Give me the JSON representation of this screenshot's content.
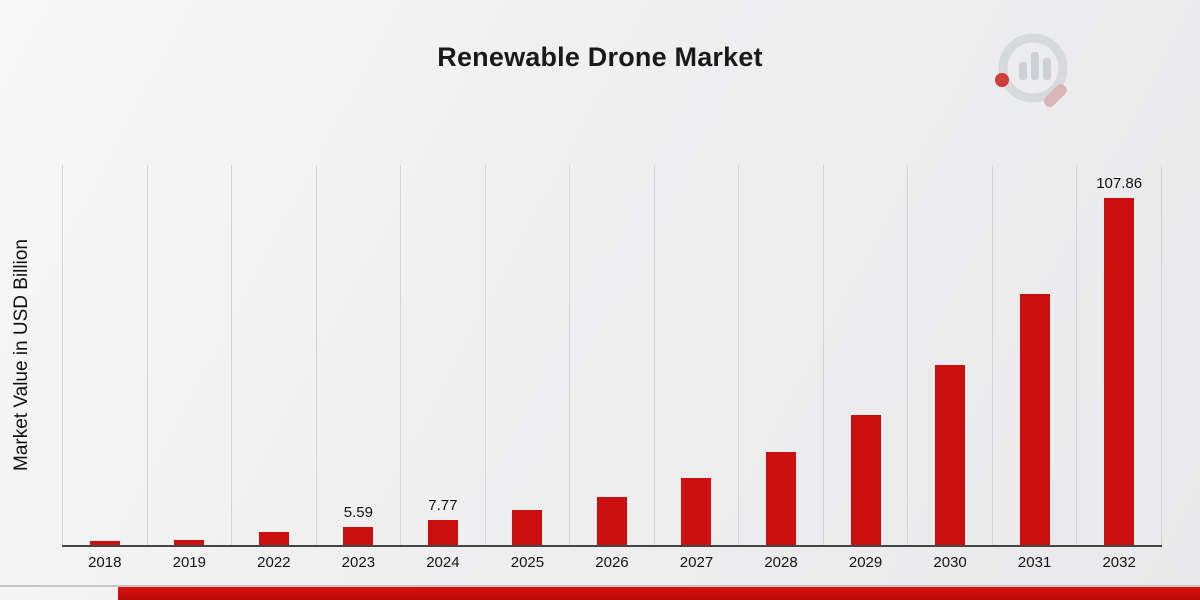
{
  "chart_data": {
    "type": "bar",
    "title": "Renewable Drone Market",
    "xlabel": "",
    "ylabel": "Market Value in USD Billion",
    "ylim": [
      0,
      118
    ],
    "grid": "vertical-gridlines-only",
    "legend": "none",
    "bar_color": "#cb0e0e",
    "background": "light-gray-diagonal-gradient",
    "categories": [
      "2018",
      "2019",
      "2022",
      "2023",
      "2024",
      "2025",
      "2026",
      "2027",
      "2028",
      "2029",
      "2030",
      "2031",
      "2032"
    ],
    "values": [
      1.2,
      1.5,
      3.9,
      5.59,
      7.77,
      10.8,
      15.0,
      20.9,
      29.0,
      40.3,
      56.0,
      77.9,
      107.86
    ],
    "points": [
      {
        "year": "2018",
        "value": 1.2,
        "label": ""
      },
      {
        "year": "2019",
        "value": 1.5,
        "label": ""
      },
      {
        "year": "2022",
        "value": 3.9,
        "label": ""
      },
      {
        "year": "2023",
        "value": 5.59,
        "label": "5.59"
      },
      {
        "year": "2024",
        "value": 7.77,
        "label": "7.77"
      },
      {
        "year": "2025",
        "value": 10.8,
        "label": ""
      },
      {
        "year": "2026",
        "value": 15.0,
        "label": ""
      },
      {
        "year": "2027",
        "value": 20.9,
        "label": ""
      },
      {
        "year": "2028",
        "value": 29.0,
        "label": ""
      },
      {
        "year": "2029",
        "value": 40.3,
        "label": ""
      },
      {
        "year": "2030",
        "value": 56.0,
        "label": ""
      },
      {
        "year": "2031",
        "value": 77.9,
        "label": ""
      },
      {
        "year": "2032",
        "value": 107.86,
        "label": "107.86"
      }
    ],
    "annotations": [
      "5.59 above 2023 bar",
      "7.77 above 2024 bar",
      "107.86 above 2032 bar"
    ]
  },
  "branding": {
    "logo_icon": "magnifier-bar-chart-logo",
    "accent_color": "#c00d0d"
  }
}
